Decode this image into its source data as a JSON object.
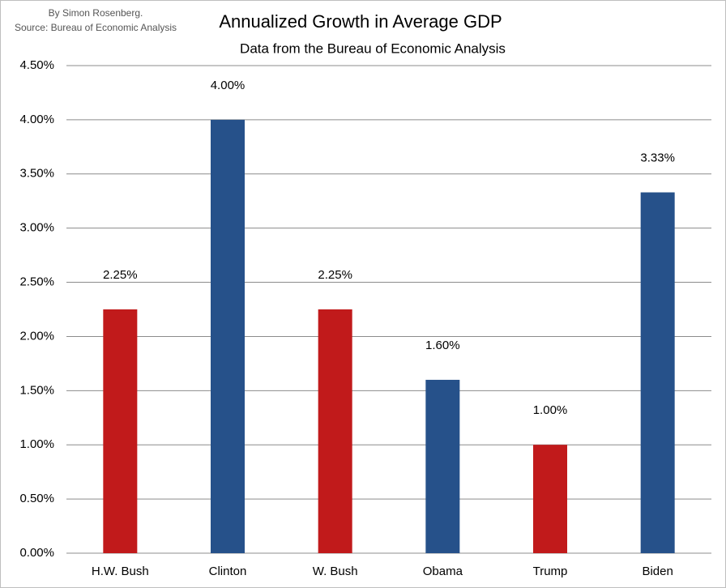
{
  "chart_data": {
    "type": "bar",
    "title": "Annualized Growth in Average GDP",
    "subtitle": "Data from the Bureau of Economic Analysis",
    "annotations": [
      "By Simon Rosenberg.",
      "Source: Bureau of Economic Analysis"
    ],
    "categories": [
      "H.W. Bush",
      "Clinton",
      "W. Bush",
      "Obama",
      "Trump",
      "Biden"
    ],
    "values": [
      2.25,
      4.0,
      2.25,
      1.6,
      1.0,
      3.33
    ],
    "value_labels": [
      "2.25%",
      "4.00%",
      "2.25%",
      "1.60%",
      "1.00%",
      "3.33%"
    ],
    "colors": [
      "#c11a1b",
      "#26518a",
      "#c11a1b",
      "#26518a",
      "#c11a1b",
      "#26518a"
    ],
    "ylim": [
      0,
      4.5
    ],
    "yticks": [
      {
        "value": 0,
        "label": "0.00%"
      },
      {
        "value": 0.5,
        "label": "0.50%"
      },
      {
        "value": 1,
        "label": "1.00%"
      },
      {
        "value": 1.5,
        "label": "1.50%"
      },
      {
        "value": 2,
        "label": "2.00%"
      },
      {
        "value": 2.5,
        "label": "2.50%"
      },
      {
        "value": 3,
        "label": "3.00%"
      },
      {
        "value": 3.5,
        "label": "3.50%"
      },
      {
        "value": 4,
        "label": "4.00%"
      },
      {
        "value": 4.5,
        "label": "4.50%"
      }
    ],
    "grid": true
  }
}
